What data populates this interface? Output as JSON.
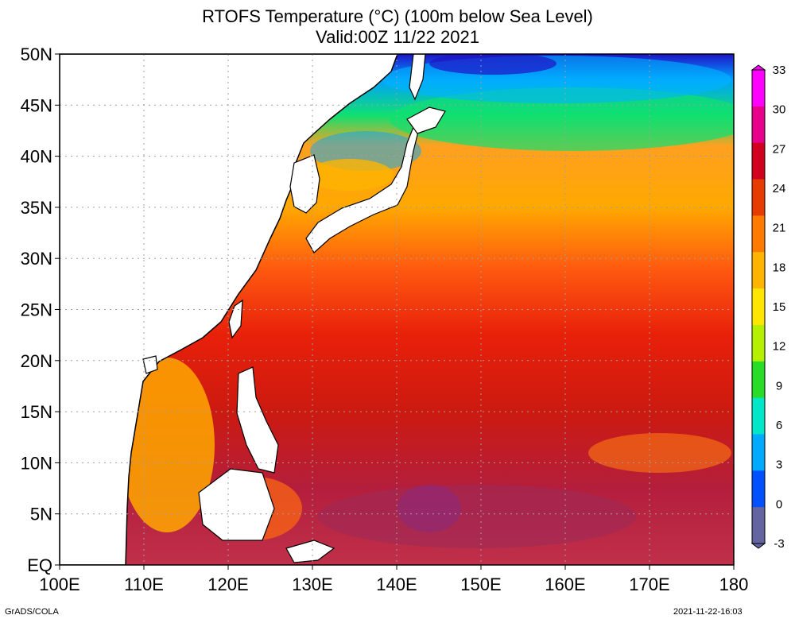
{
  "title_line1": "RTOFS Temperature (°C) (100m below Sea Level)",
  "title_line2": "Valid:00Z 11/22 2021",
  "lat_labels": [
    "50N",
    "45N",
    "40N",
    "35N",
    "30N",
    "25N",
    "20N",
    "15N",
    "10N",
    "5N",
    "EQ"
  ],
  "lon_labels": [
    "100E",
    "110E",
    "120E",
    "130E",
    "140E",
    "150E",
    "160E",
    "170E",
    "180"
  ],
  "colorbar": {
    "ticks": [
      "33",
      "30",
      "27",
      "24",
      "21",
      "18",
      "15",
      "12",
      "9",
      "6",
      "3",
      "0",
      "-3"
    ],
    "colors": [
      "#ff00ff",
      "#e8008c",
      "#d2001e",
      "#e63c00",
      "#ff7a00",
      "#ffb400",
      "#ffe600",
      "#b4f000",
      "#28dc28",
      "#00e6c8",
      "#00aaff",
      "#0050ff",
      "#6464a0"
    ]
  },
  "footer_left": "GrADS/COLA",
  "footer_right": "2021-11-22-16:03"
}
